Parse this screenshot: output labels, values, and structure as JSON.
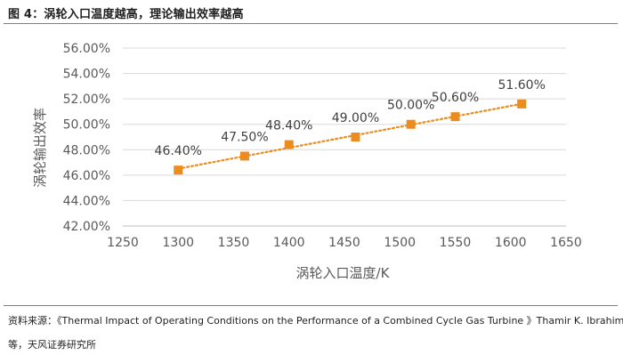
{
  "figure": {
    "title": "图 4：涡轮入口温度越高，理论输出效率越高"
  },
  "source": {
    "line1": "资料来源：《Thermal Impact of Operating Conditions on the Performance of a Combined Cycle Gas Turbine 》Thamir K. Ibrahim",
    "line2": "等，天风证券研究所"
  },
  "chart_data": {
    "type": "scatter",
    "title": "",
    "xlabel": "涡轮入口温度/K",
    "ylabel": "涡轮输出效率",
    "xlim": [
      1250,
      1650
    ],
    "ylim": [
      42,
      56
    ],
    "x_ticks": [
      1250,
      1300,
      1350,
      1400,
      1450,
      1500,
      1550,
      1600,
      1650
    ],
    "x_tick_labels": [
      "1250",
      "1300",
      "1350",
      "1400",
      "1450",
      "1500",
      "1550",
      "1600",
      "1650"
    ],
    "y_ticks": [
      42,
      44,
      46,
      48,
      50,
      52,
      54,
      56
    ],
    "y_tick_labels": [
      "42.00%",
      "44.00%",
      "46.00%",
      "48.00%",
      "50.00%",
      "52.00%",
      "54.00%",
      "56.00%"
    ],
    "grid": "horizontal",
    "trendline": "linear (dotted)",
    "series": [
      {
        "name": "涡轮输出效率",
        "color": "#ED8C1E",
        "x": [
          1300,
          1360,
          1400,
          1460,
          1510,
          1550,
          1610
        ],
        "values": [
          46.4,
          47.5,
          48.4,
          49.0,
          50.0,
          50.6,
          51.6
        ],
        "labels": [
          "46.40%",
          "47.50%",
          "48.40%",
          "49.00%",
          "50.00%",
          "50.60%",
          "51.60%"
        ]
      }
    ]
  }
}
